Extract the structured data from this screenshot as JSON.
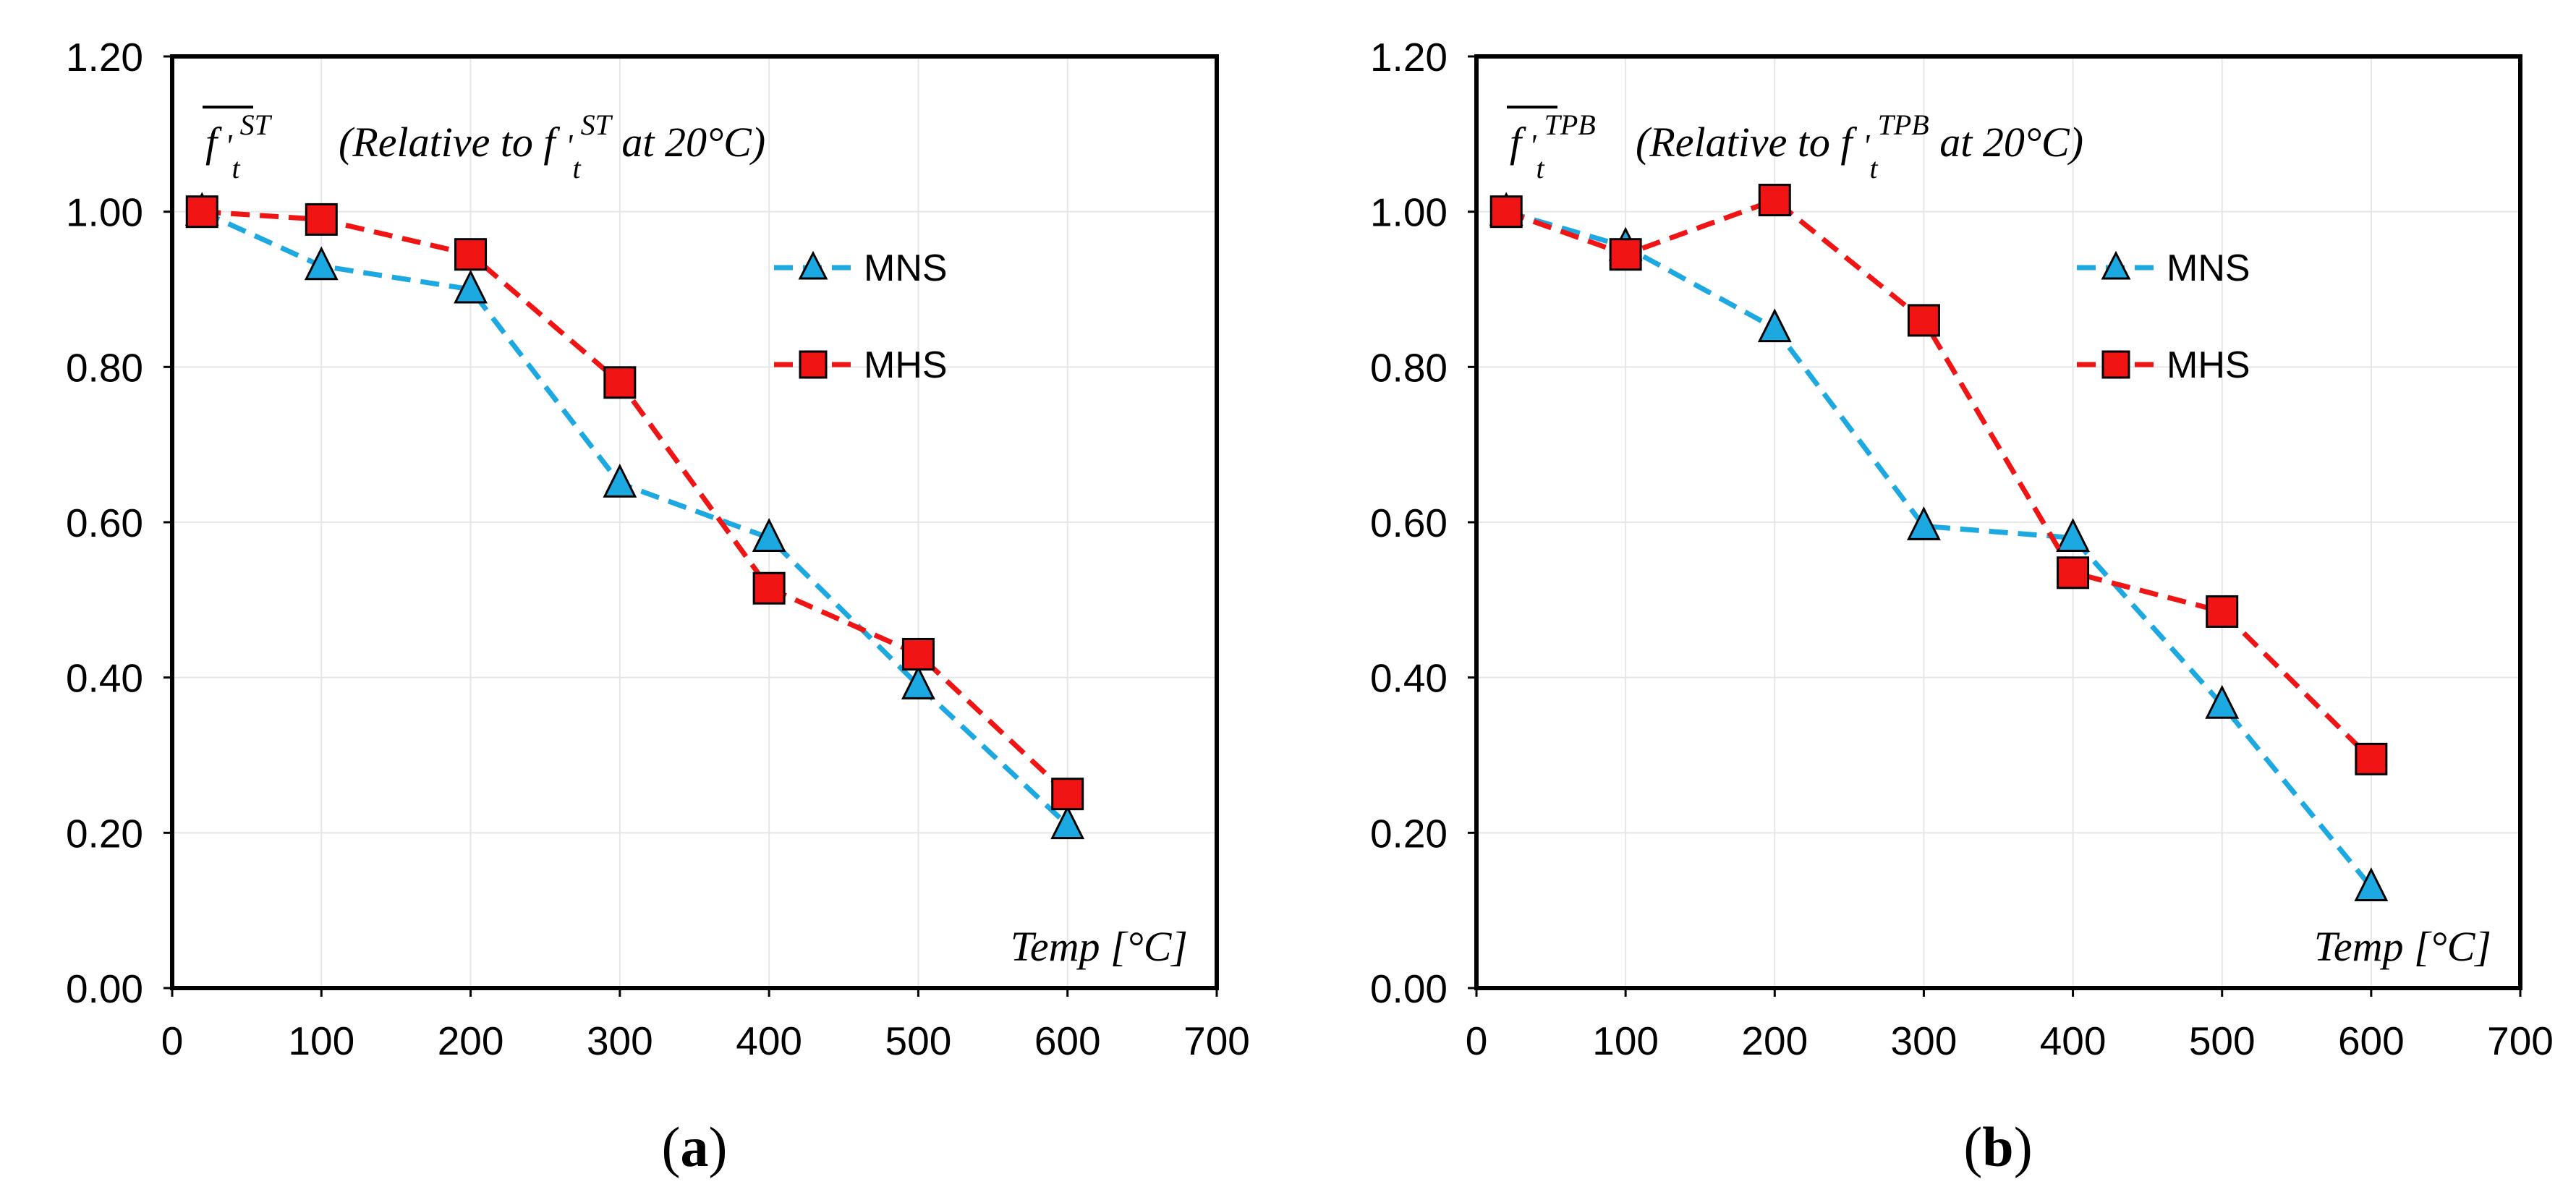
{
  "chart_data": [
    {
      "type": "line",
      "panel": "a",
      "caption_open": "(",
      "caption_letter": "a",
      "caption_close": ")",
      "title_symbol": "f",
      "title_sup": "ST",
      "title_text": "(Relative to f",
      "title_text_sup": "ST",
      "title_text_end": "at 20°C)",
      "xlabel": "Temp [°C]",
      "ylabel": "",
      "xlim": [
        0,
        700
      ],
      "ylim": [
        0,
        1.2
      ],
      "xticks": [
        0,
        100,
        200,
        300,
        400,
        500,
        600,
        700
      ],
      "yticks": [
        0,
        0.2,
        0.4,
        0.6,
        0.8,
        1.0,
        1.2
      ],
      "ytick_labels": [
        "0.00",
        "0.20",
        "0.40",
        "0.60",
        "0.80",
        "1.00",
        "1.20"
      ],
      "grid": true,
      "legend_position": "upper-right",
      "series": [
        {
          "name": "MNS",
          "color": "#1ca8e0",
          "marker": "triangle",
          "x": [
            20,
            100,
            200,
            300,
            400,
            500,
            600
          ],
          "y": [
            1.0,
            0.93,
            0.9,
            0.65,
            0.58,
            0.39,
            0.21
          ]
        },
        {
          "name": "MHS",
          "color": "#f01414",
          "marker": "square",
          "x": [
            20,
            100,
            200,
            300,
            400,
            500,
            600
          ],
          "y": [
            1.0,
            0.99,
            0.945,
            0.78,
            0.515,
            0.43,
            0.25
          ]
        }
      ]
    },
    {
      "type": "line",
      "panel": "b",
      "caption_open": "(",
      "caption_letter": "b",
      "caption_close": ")",
      "title_symbol": "f",
      "title_sup": "TPB",
      "title_text": "(Relative to f",
      "title_text_sup": "TPB",
      "title_text_end": "at 20°C)",
      "xlabel": "Temp [°C]",
      "ylabel": "",
      "xlim": [
        0,
        700
      ],
      "ylim": [
        0,
        1.2
      ],
      "xticks": [
        0,
        100,
        200,
        300,
        400,
        500,
        600,
        700
      ],
      "yticks": [
        0,
        0.2,
        0.4,
        0.6,
        0.8,
        1.0,
        1.2
      ],
      "ytick_labels": [
        "0.00",
        "0.20",
        "0.40",
        "0.60",
        "0.80",
        "1.00",
        "1.20"
      ],
      "grid": true,
      "legend_position": "upper-right",
      "series": [
        {
          "name": "MNS",
          "color": "#1ca8e0",
          "marker": "triangle",
          "x": [
            20,
            100,
            200,
            300,
            400,
            500,
            600
          ],
          "y": [
            1.0,
            0.955,
            0.85,
            0.595,
            0.58,
            0.365,
            0.13
          ]
        },
        {
          "name": "MHS",
          "color": "#f01414",
          "marker": "square",
          "x": [
            20,
            100,
            200,
            300,
            400,
            500,
            600
          ],
          "y": [
            1.0,
            0.945,
            1.015,
            0.86,
            0.535,
            0.485,
            0.295
          ]
        }
      ]
    }
  ]
}
